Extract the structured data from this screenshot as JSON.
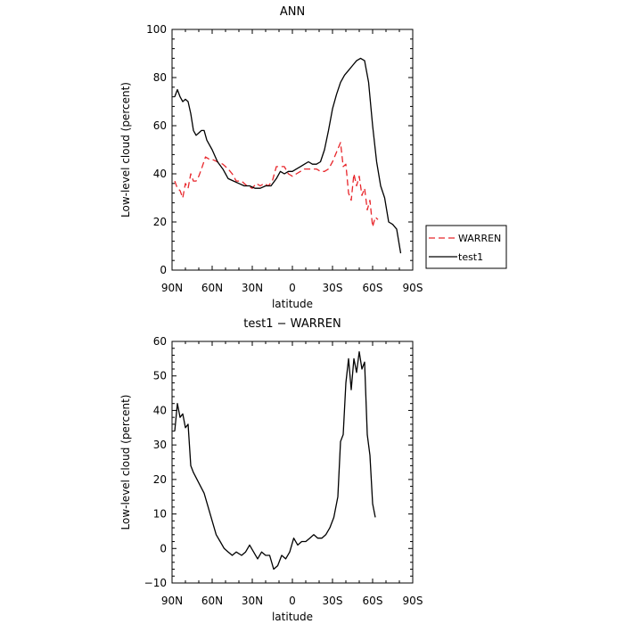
{
  "chart_data": [
    {
      "type": "line",
      "title": "ANN",
      "xlabel": "latitude",
      "ylabel": "Low-level cloud (percent)",
      "xlim": [
        90,
        -90
      ],
      "ylim": [
        0,
        100
      ],
      "xticks": [
        90,
        60,
        30,
        0,
        -30,
        -60,
        -90
      ],
      "xtick_labels": [
        "90N",
        "60N",
        "30N",
        "0",
        "30S",
        "60S",
        "90S"
      ],
      "yticks": [
        0,
        20,
        40,
        60,
        80,
        100
      ],
      "ytick_labels": [
        "0",
        "20",
        "40",
        "60",
        "80",
        "100"
      ],
      "legend": {
        "placement": "right",
        "entries": [
          {
            "name": "WARREN",
            "color": "#e8262b",
            "dash": "dashed"
          },
          {
            "name": "test1",
            "color": "#000000",
            "dash": "solid"
          }
        ]
      },
      "series": [
        {
          "name": "WARREN",
          "color": "#e8262b",
          "points": [
            [
              88,
              37
            ],
            [
              86,
              34
            ],
            [
              84,
              33
            ],
            [
              82,
              30
            ],
            [
              80,
              36
            ],
            [
              78,
              34
            ],
            [
              76,
              40
            ],
            [
              74,
              37
            ],
            [
              72,
              37
            ],
            [
              70,
              39
            ],
            [
              68,
              42
            ],
            [
              65,
              47
            ],
            [
              62,
              46
            ],
            [
              60,
              46
            ],
            [
              56,
              45
            ],
            [
              52,
              44
            ],
            [
              48,
              42
            ],
            [
              45,
              40
            ],
            [
              42,
              37
            ],
            [
              38,
              37
            ],
            [
              34,
              35
            ],
            [
              30,
              34
            ],
            [
              27,
              36
            ],
            [
              24,
              35
            ],
            [
              21,
              36
            ],
            [
              18,
              35
            ],
            [
              15,
              37
            ],
            [
              12,
              43
            ],
            [
              9,
              43
            ],
            [
              6,
              43
            ],
            [
              3,
              40
            ],
            [
              0,
              39
            ],
            [
              -3,
              40
            ],
            [
              -6,
              41
            ],
            [
              -9,
              42
            ],
            [
              -12,
              42
            ],
            [
              -15,
              42
            ],
            [
              -18,
              42
            ],
            [
              -21,
              41
            ],
            [
              -24,
              41
            ],
            [
              -27,
              42
            ],
            [
              -30,
              45
            ],
            [
              -33,
              49
            ],
            [
              -36,
              53
            ],
            [
              -38,
              43
            ],
            [
              -40,
              44
            ],
            [
              -42,
              32
            ],
            [
              -44,
              29
            ],
            [
              -46,
              40
            ],
            [
              -48,
              35
            ],
            [
              -50,
              39
            ],
            [
              -52,
              31
            ],
            [
              -54,
              34
            ],
            [
              -56,
              25
            ],
            [
              -58,
              29
            ],
            [
              -60,
              18
            ],
            [
              -62,
              22
            ],
            [
              -64,
              21
            ]
          ]
        },
        {
          "name": "test1",
          "color": "#000000",
          "points": [
            [
              88,
              72
            ],
            [
              86,
              75
            ],
            [
              84,
              72
            ],
            [
              82,
              70
            ],
            [
              80,
              71
            ],
            [
              78,
              70
            ],
            [
              76,
              65
            ],
            [
              74,
              58
            ],
            [
              72,
              56
            ],
            [
              70,
              57
            ],
            [
              68,
              58
            ],
            [
              66,
              58
            ],
            [
              64,
              54
            ],
            [
              60,
              50
            ],
            [
              56,
              45
            ],
            [
              52,
              42
            ],
            [
              48,
              38
            ],
            [
              44,
              37
            ],
            [
              40,
              36
            ],
            [
              36,
              35
            ],
            [
              32,
              35
            ],
            [
              28,
              34
            ],
            [
              24,
              34
            ],
            [
              20,
              35
            ],
            [
              16,
              35
            ],
            [
              12,
              38
            ],
            [
              9,
              41
            ],
            [
              6,
              40
            ],
            [
              3,
              41
            ],
            [
              0,
              41
            ],
            [
              -3,
              42
            ],
            [
              -6,
              43
            ],
            [
              -9,
              44
            ],
            [
              -12,
              45
            ],
            [
              -15,
              44
            ],
            [
              -18,
              44
            ],
            [
              -21,
              45
            ],
            [
              -24,
              50
            ],
            [
              -27,
              58
            ],
            [
              -30,
              67
            ],
            [
              -33,
              73
            ],
            [
              -36,
              78
            ],
            [
              -39,
              81
            ],
            [
              -42,
              83
            ],
            [
              -45,
              85
            ],
            [
              -48,
              87
            ],
            [
              -51,
              88
            ],
            [
              -54,
              87
            ],
            [
              -57,
              78
            ],
            [
              -60,
              60
            ],
            [
              -63,
              45
            ],
            [
              -66,
              35
            ],
            [
              -69,
              30
            ],
            [
              -72,
              20
            ],
            [
              -75,
              19
            ],
            [
              -78,
              17
            ],
            [
              -81,
              7
            ]
          ]
        }
      ]
    },
    {
      "type": "line",
      "title": "test1 − WARREN",
      "xlabel": "latitude",
      "ylabel": "Low-level cloud (percent)",
      "xlim": [
        90,
        -90
      ],
      "ylim": [
        -10,
        60
      ],
      "xticks": [
        90,
        60,
        30,
        0,
        -30,
        -60,
        -90
      ],
      "xtick_labels": [
        "90N",
        "60N",
        "30N",
        "0",
        "30S",
        "60S",
        "90S"
      ],
      "yticks": [
        -10,
        0,
        10,
        20,
        30,
        40,
        50,
        60
      ],
      "ytick_labels": [
        "−10",
        "0",
        "10",
        "20",
        "30",
        "40",
        "50",
        "60"
      ],
      "series": [
        {
          "color": "#000000",
          "points": [
            [
              88,
              34
            ],
            [
              86,
              42
            ],
            [
              84,
              38
            ],
            [
              82,
              39
            ],
            [
              80,
              35
            ],
            [
              78,
              36
            ],
            [
              76,
              24
            ],
            [
              74,
              22
            ],
            [
              70,
              19
            ],
            [
              66,
              16
            ],
            [
              63,
              12
            ],
            [
              60,
              8
            ],
            [
              57,
              4
            ],
            [
              54,
              2
            ],
            [
              51,
              0
            ],
            [
              48,
              -1
            ],
            [
              45,
              -2
            ],
            [
              42,
              -1
            ],
            [
              38,
              -2
            ],
            [
              35,
              -1
            ],
            [
              32,
              1
            ],
            [
              29,
              -1
            ],
            [
              26,
              -3
            ],
            [
              23,
              -1
            ],
            [
              20,
              -2
            ],
            [
              17,
              -2
            ],
            [
              14,
              -6
            ],
            [
              11,
              -5
            ],
            [
              8,
              -2
            ],
            [
              5,
              -3
            ],
            [
              2,
              -1
            ],
            [
              -1,
              3
            ],
            [
              -4,
              1
            ],
            [
              -7,
              2
            ],
            [
              -10,
              2
            ],
            [
              -13,
              3
            ],
            [
              -16,
              4
            ],
            [
              -19,
              3
            ],
            [
              -22,
              3
            ],
            [
              -25,
              4
            ],
            [
              -28,
              6
            ],
            [
              -31,
              9
            ],
            [
              -34,
              15
            ],
            [
              -36,
              31
            ],
            [
              -38,
              33
            ],
            [
              -40,
              48
            ],
            [
              -42,
              55
            ],
            [
              -44,
              46
            ],
            [
              -46,
              55
            ],
            [
              -48,
              51
            ],
            [
              -50,
              57
            ],
            [
              -52,
              52
            ],
            [
              -54,
              54
            ],
            [
              -56,
              33
            ],
            [
              -58,
              27
            ],
            [
              -60,
              13
            ],
            [
              -62,
              9
            ]
          ]
        }
      ]
    }
  ]
}
